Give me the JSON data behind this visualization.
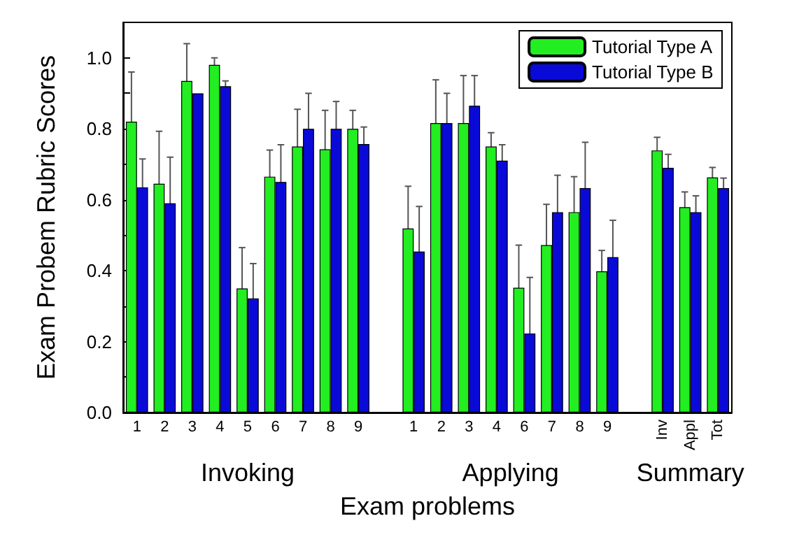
{
  "chart_data": {
    "type": "bar",
    "xlabel": "Exam problems",
    "ylabel": "Exam Probem Rubric Scores",
    "categories": [
      "1",
      "2",
      "3",
      "4",
      "5",
      "6",
      "7",
      "8",
      "9",
      null,
      "1",
      "2",
      "3",
      "4",
      "6",
      "7",
      "8",
      "9",
      null,
      "Inv",
      "Appl",
      "Tot"
    ],
    "series": [
      {
        "name": "Tutorial Type A",
        "color": "#22ee22",
        "values": [
          0.82,
          0.645,
          0.935,
          0.98,
          0.35,
          0.665,
          0.75,
          0.742,
          0.8,
          null,
          0.519,
          0.816,
          0.816,
          0.75,
          0.352,
          0.472,
          0.565,
          0.398,
          null,
          0.739,
          0.579,
          0.663
        ],
        "errors": [
          0.14,
          0.148,
          0.105,
          0.02,
          0.115,
          0.075,
          0.105,
          0.11,
          0.052,
          null,
          0.119,
          0.122,
          0.134,
          0.039,
          0.12,
          0.115,
          0.1,
          0.059,
          null,
          0.037,
          0.043,
          0.028
        ]
      },
      {
        "name": "Tutorial Type B",
        "color": "#0a0ad8",
        "values": [
          0.635,
          0.59,
          0.9,
          0.92,
          0.322,
          0.65,
          0.8,
          0.8,
          0.757,
          null,
          0.454,
          0.816,
          0.865,
          0.71,
          0.223,
          0.565,
          0.633,
          0.438,
          null,
          0.69,
          0.565,
          0.633
        ],
        "errors": [
          0.08,
          0.13,
          null,
          0.015,
          0.098,
          0.105,
          0.1,
          0.077,
          0.048,
          null,
          0.127,
          0.084,
          0.085,
          0.045,
          0.158,
          0.104,
          0.129,
          0.104,
          null,
          0.038,
          0.046,
          0.028
        ]
      }
    ],
    "annotations": [
      "Invoking",
      "Applying",
      "Summary"
    ],
    "ylim": [
      0,
      1.1
    ],
    "yticks": [
      {
        "value": 0,
        "label": "0.0"
      },
      {
        "value": 0.1,
        "label": null
      },
      {
        "value": 0.2,
        "label": "0.2"
      },
      {
        "value": 0.3,
        "label": null
      },
      {
        "value": 0.4,
        "label": "0.4"
      },
      {
        "value": 0.5,
        "label": null
      },
      {
        "value": 0.6,
        "label": "0.6"
      },
      {
        "value": 0.7,
        "label": null
      },
      {
        "value": 0.8,
        "label": "0.8"
      },
      {
        "value": 0.9,
        "label": null
      },
      {
        "value": 1,
        "label": "1.0"
      }
    ],
    "grid": false,
    "legend": "top right"
  }
}
